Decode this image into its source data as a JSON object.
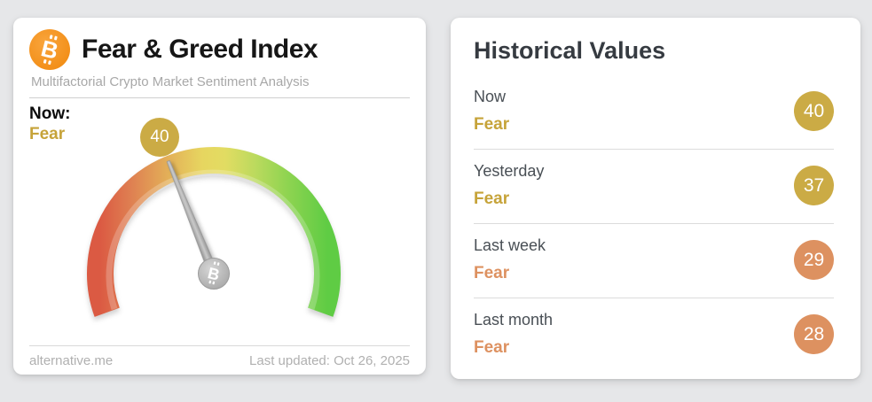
{
  "page": {
    "background_color": "#e6e7e9"
  },
  "gauge_card": {
    "logo_icon": "bitcoin-icon",
    "title": "Fear & Greed Index",
    "subtitle": "Multifactorial Crypto Market Sentiment Analysis",
    "now_label": "Now:",
    "now_sentiment": "Fear",
    "now_value": "40",
    "now_tone": "gold",
    "footer_left": "alternative.me",
    "footer_right": "Last updated: Oct 26, 2025",
    "gauge": {
      "min": 0,
      "max": 100,
      "value": 40,
      "sweep_degrees": 220,
      "needle_color": "#9e9e9e",
      "arc_color_left": "#db5a43",
      "arc_color_mid": "#e7dc62",
      "arc_color_right": "#5fcc44"
    },
    "colors": {
      "sentiment_gold": "#c6a339",
      "badge_gold": "#cbab45",
      "bitcoin_orange": "#f7931a"
    }
  },
  "history_card": {
    "title": "Historical Values",
    "rows": [
      {
        "label": "Now",
        "sentiment": "Fear",
        "value": "40",
        "tone": "gold"
      },
      {
        "label": "Yesterday",
        "sentiment": "Fear",
        "value": "37",
        "tone": "gold"
      },
      {
        "label": "Last week",
        "sentiment": "Fear",
        "value": "29",
        "tone": "orange"
      },
      {
        "label": "Last month",
        "sentiment": "Fear",
        "value": "28",
        "tone": "orange"
      }
    ]
  },
  "chart_data": {
    "type": "gauge",
    "title": "Fear & Greed Index",
    "value": 40,
    "min": 0,
    "max": 100,
    "classification": "Fear",
    "scale": "red (fear, left) to green (greed, right)",
    "history": [
      {
        "period": "Now",
        "value": 40,
        "classification": "Fear"
      },
      {
        "period": "Yesterday",
        "value": 37,
        "classification": "Fear"
      },
      {
        "period": "Last week",
        "value": 29,
        "classification": "Fear"
      },
      {
        "period": "Last month",
        "value": 28,
        "classification": "Fear"
      }
    ]
  }
}
